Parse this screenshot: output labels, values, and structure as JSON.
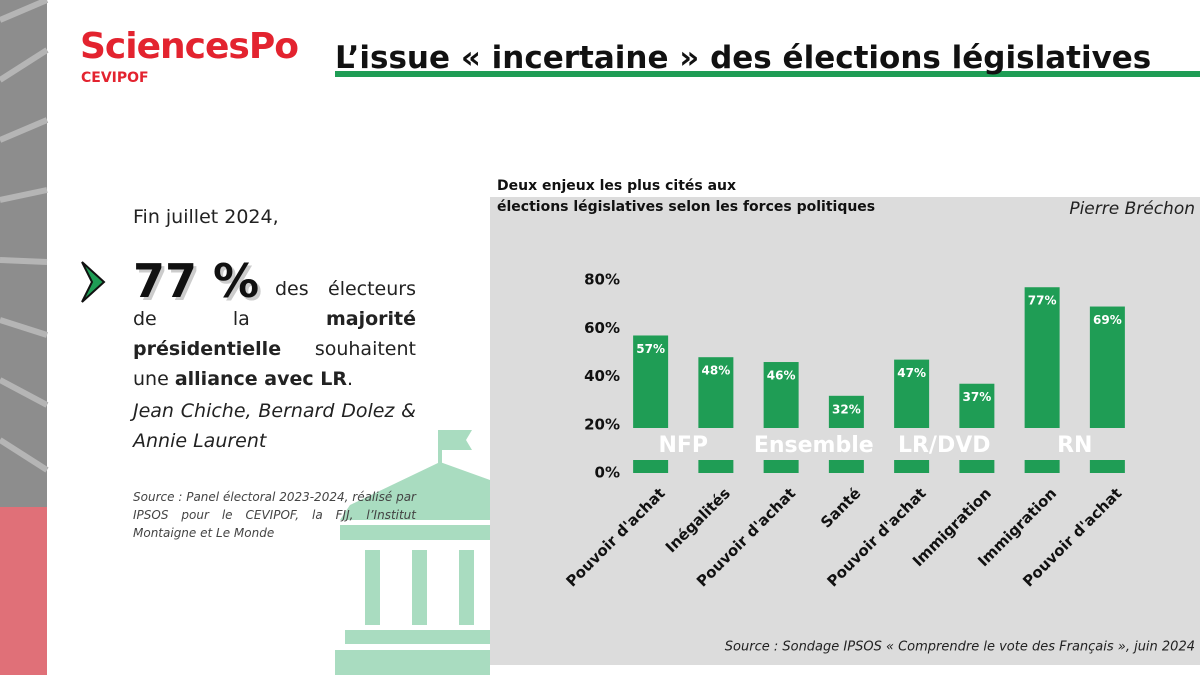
{
  "header": {
    "logo": "SciencesPo",
    "logo_sub": "CEVIPOF",
    "title": "L’issue « incertaine » des élections législatives"
  },
  "left": {
    "intro": "Fin juillet 2024,",
    "stat": "77 %",
    "statement": [
      "des électeurs de la",
      "majorité présidentielle",
      "souhaitent une",
      "alliance avec LR",
      "."
    ],
    "authors": "Jean Chiche, Bernard Dolez & Annie Laurent",
    "source": "Source : Panel électoral 2023-2024, réalisé par IPSOS pour le CEVIPOF, la FJJ, l’Institut Montaigne et Le Monde"
  },
  "chart_data": {
    "type": "bar",
    "title": "Deux enjeux les plus cités aux élections législatives selon les forces politiques",
    "author": "Pierre Bréchon",
    "categories": [
      "Pouvoir d'achat",
      "Inégalités",
      "Pouvoir d'achat",
      "Santé",
      "Pouvoir d'achat",
      "Immigration",
      "Immigration",
      "Pouvoir d'achat"
    ],
    "values": [
      57,
      48,
      46,
      32,
      47,
      37,
      77,
      69
    ],
    "value_labels": [
      "57%",
      "48%",
      "46%",
      "32%",
      "47%",
      "37%",
      "77%",
      "69%"
    ],
    "groups": [
      "NFP",
      "Ensemble",
      "LR/DVD",
      "RN"
    ],
    "color": "#1f9d55",
    "ylim": [
      0,
      80
    ],
    "yticks": [
      {
        "value": 0,
        "label": "0%"
      },
      {
        "value": 20,
        "label": "20%"
      },
      {
        "value": 40,
        "label": "40%"
      },
      {
        "value": 60,
        "label": "60%"
      },
      {
        "value": 80,
        "label": "80%"
      }
    ],
    "source": "Source : Sondage IPSOS « Comprendre le vote des Français », juin 2024"
  }
}
